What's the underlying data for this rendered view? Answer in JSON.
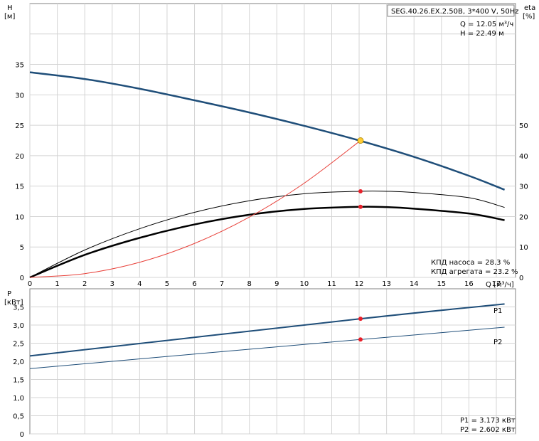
{
  "chart_data": [
    {
      "type": "line",
      "panel": "head-efficiency",
      "title": "SEG.40.26.EX.2.50B, 3*400 V, 50Hz",
      "xlabel": "Q [м³/ч]",
      "ylabel_left": "H",
      "ylabel_left_unit": "[м]",
      "ylabel_right": "eta",
      "ylabel_right_unit": "[%]",
      "xlim": [
        0,
        17.7
      ],
      "ylim_left": [
        0,
        45
      ],
      "ylim_right": [
        0,
        90
      ],
      "x_ticks": [
        0,
        1,
        2,
        3,
        4,
        5,
        6,
        7,
        8,
        9,
        10,
        11,
        12,
        13,
        14,
        15,
        16,
        17
      ],
      "y_ticks_left": [
        0,
        5,
        10,
        15,
        20,
        25,
        30,
        35
      ],
      "y_ticks_right": [
        0,
        10,
        20,
        30,
        40,
        50
      ],
      "grid": true,
      "series": [
        {
          "name": "H",
          "axis": "left",
          "color": "#1f4e79",
          "x": [
            0,
            2,
            4,
            6,
            8,
            10,
            12,
            14,
            16,
            17.3
          ],
          "y": [
            33.7,
            32.6,
            31.0,
            29.1,
            27.1,
            24.9,
            22.5,
            19.8,
            16.7,
            14.4
          ]
        },
        {
          "name": "КПД насоса",
          "axis": "right",
          "color": "#000000",
          "x": [
            0,
            2,
            4,
            6,
            8,
            10,
            12,
            13,
            14,
            16,
            17.3
          ],
          "y": [
            0,
            9.0,
            16.0,
            21.4,
            25.2,
            27.5,
            28.3,
            28.3,
            27.9,
            26.2,
            23.0
          ]
        },
        {
          "name": "КПД агрегата",
          "axis": "right",
          "color": "#000000",
          "x": [
            0,
            2,
            4,
            6,
            8,
            10,
            12,
            13,
            14,
            16,
            17.3
          ],
          "y": [
            0,
            7.4,
            13.0,
            17.4,
            20.6,
            22.5,
            23.2,
            23.1,
            22.6,
            21.0,
            18.8
          ]
        },
        {
          "name": "system curve",
          "axis": "left",
          "color": "#e8413a",
          "x": [
            0,
            2,
            4,
            6,
            8,
            10,
            12.05
          ],
          "y": [
            0,
            0.62,
            2.48,
            5.58,
            9.91,
            15.49,
            22.49
          ]
        }
      ],
      "operating_point": {
        "x": 12.05,
        "y": 22.49,
        "eta_pump": 28.3,
        "eta_unit": 23.2,
        "color": "#ffcc33"
      },
      "annotations": {
        "q_text": "Q = 12.05 м³/ч",
        "h_text": "H = 22.49 м",
        "eta_pump_text": "КПД насоса = 28.3 %",
        "eta_unit_text": "КПД агрегата = 23.2 %"
      }
    },
    {
      "type": "line",
      "panel": "power",
      "ylabel": "P",
      "ylabel_unit": "[кВт]",
      "xlim": [
        0,
        17.7
      ],
      "ylim": [
        0,
        4.0
      ],
      "y_ticks": [
        "0",
        "0,5",
        "1,0",
        "1,5",
        "2,0",
        "2,5",
        "3,0",
        "3,5"
      ],
      "y_tick_values": [
        0,
        0.5,
        1.0,
        1.5,
        2.0,
        2.5,
        3.0,
        3.5
      ],
      "grid": true,
      "series": [
        {
          "name": "P1",
          "color": "#1f4e79",
          "x": [
            0,
            12.05,
            17.3
          ],
          "y": [
            2.15,
            3.173,
            3.58
          ]
        },
        {
          "name": "P2",
          "color": "#1f4e79",
          "x": [
            0,
            12.05,
            17.3
          ],
          "y": [
            1.8,
            2.602,
            2.94
          ]
        }
      ],
      "operating_points": [
        {
          "x": 12.05,
          "y": 3.173
        },
        {
          "x": 12.05,
          "y": 2.602
        }
      ],
      "annotations": {
        "p1_text": "P1 = 3.173 кВт",
        "p2_text": "P2 = 2.602 кВт"
      }
    }
  ]
}
